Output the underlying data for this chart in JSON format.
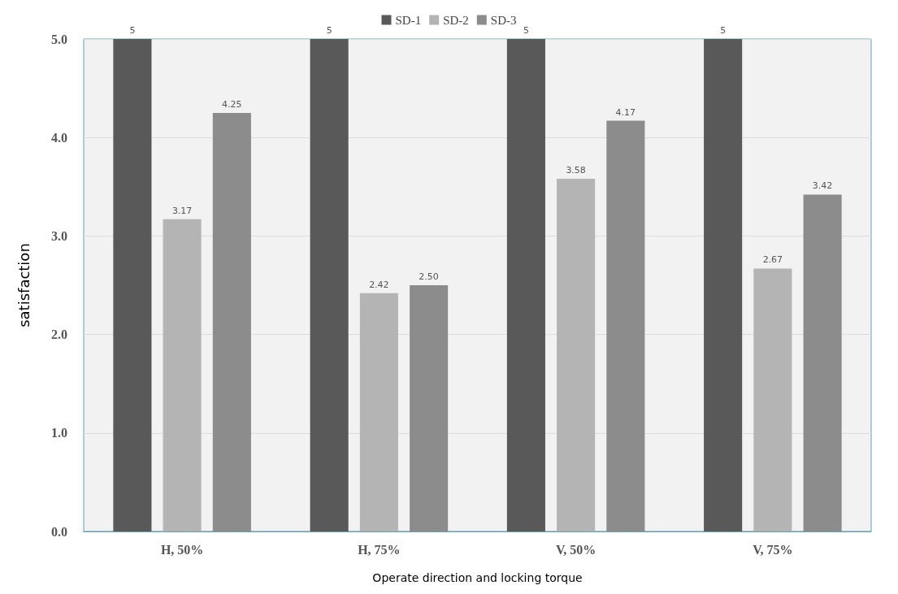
{
  "chart_data": {
    "type": "bar",
    "xlabel": "Operate direction and locking torque",
    "ylabel": "satisfaction",
    "categories": [
      "H, 50%",
      "H, 75%",
      "V, 50%",
      "V, 75%"
    ],
    "series": [
      {
        "name": "SD-1",
        "color": "#595959",
        "values": [
          5,
          5,
          5,
          5
        ],
        "value_labels": [
          "5",
          "5",
          "5",
          "5"
        ]
      },
      {
        "name": "SD-2",
        "color": "#b4b4b4",
        "values": [
          3.17,
          2.42,
          3.58,
          2.67
        ],
        "value_labels": [
          "3.17",
          "2.42",
          "3.58",
          "2.67"
        ]
      },
      {
        "name": "SD-3",
        "color": "#8c8c8c",
        "values": [
          4.25,
          2.5,
          4.17,
          3.42
        ],
        "value_labels": [
          "4.25",
          "2.50",
          "4.17",
          "3.42"
        ]
      }
    ],
    "ylim": [
      0,
      5
    ],
    "yticks": [
      {
        "value": 0,
        "label": "0.0"
      },
      {
        "value": 1,
        "label": "1.0"
      },
      {
        "value": 2,
        "label": "2.0"
      },
      {
        "value": 3,
        "label": "3.0"
      },
      {
        "value": 4,
        "label": "4.0"
      },
      {
        "value": 5,
        "label": "5.0"
      }
    ],
    "grid": "y",
    "legend": "top"
  }
}
